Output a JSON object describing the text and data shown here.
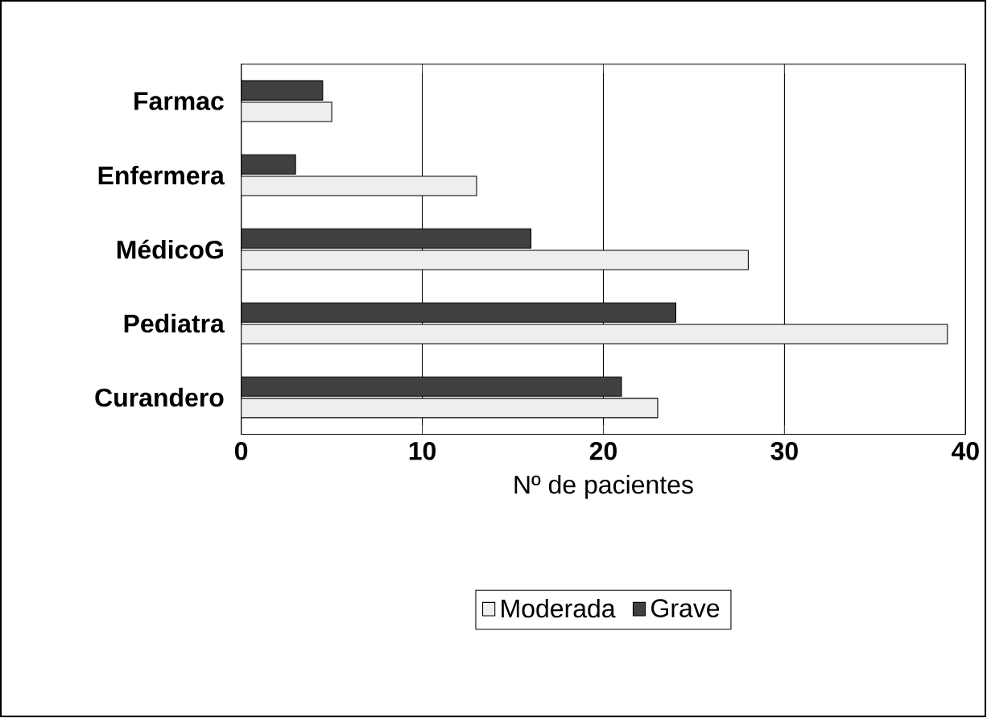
{
  "chart_data": {
    "type": "bar",
    "orientation": "horizontal",
    "xlabel": "Nº de pacientes",
    "categories": [
      "Farmac",
      "Enfermera",
      "MédicoG",
      "Pediatra",
      "Curandero"
    ],
    "series": [
      {
        "name": "Moderada",
        "color": "#eeeeee",
        "values": [
          5,
          13,
          28,
          39,
          23
        ]
      },
      {
        "name": "Grave",
        "color": "#404040",
        "values": [
          4.5,
          3,
          16,
          24,
          21
        ]
      }
    ],
    "xlim": [
      0,
      40
    ],
    "xticks": [
      0,
      10,
      20,
      30,
      40
    ],
    "grid": "x",
    "legend": "bottom"
  }
}
